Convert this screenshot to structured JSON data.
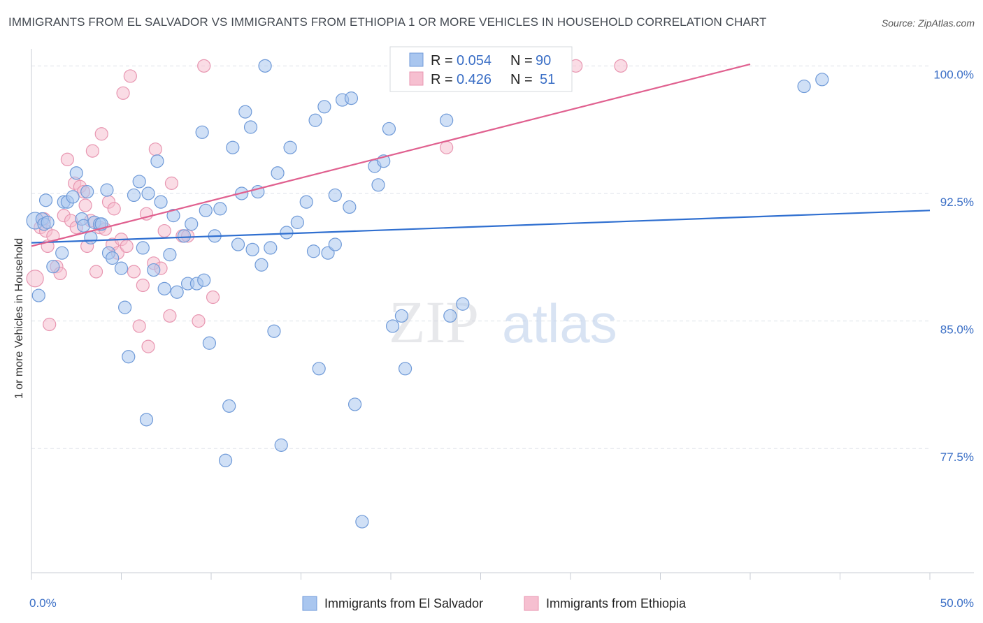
{
  "title": "IMMIGRANTS FROM EL SALVADOR VS IMMIGRANTS FROM ETHIOPIA 1 OR MORE VEHICLES IN HOUSEHOLD CORRELATION CHART",
  "source": "Source: ZipAtlas.com",
  "watermark": {
    "zip": "ZIP",
    "atlas": "atlas"
  },
  "legend": {
    "r_label": "R =",
    "n_label": "N =",
    "series1": {
      "r": "0.054",
      "n": "90"
    },
    "series2": {
      "r": "0.426",
      "n": "51"
    }
  },
  "colors": {
    "series1_fill": "#a9c6ef",
    "series1_stroke": "#6f9ad8",
    "series1_line": "#2f6fd0",
    "series2_fill": "#f6bfd0",
    "series2_stroke": "#e896b1",
    "series2_line": "#e0608f",
    "tick_label": "#3b6fc6",
    "grid": "#dde1e8"
  },
  "chart_data": {
    "type": "scatter",
    "title": "IMMIGRANTS FROM EL SALVADOR VS IMMIGRANTS FROM ETHIOPIA 1 OR MORE VEHICLES IN HOUSEHOLD CORRELATION CHART",
    "xlabel": "",
    "ylabel": "1 or more Vehicles in Household",
    "xlim": [
      0,
      50
    ],
    "ylim": [
      70.2,
      101
    ],
    "x_tick_labels": [
      {
        "value": 0,
        "label": "0.0%"
      },
      {
        "value": 50,
        "label": "50.0%"
      }
    ],
    "y_ticks": [
      {
        "value": 77.5,
        "label": "77.5%"
      },
      {
        "value": 85.0,
        "label": "85.0%"
      },
      {
        "value": 92.5,
        "label": "92.5%"
      },
      {
        "value": 100.0,
        "label": "100.0%"
      }
    ],
    "series": [
      {
        "name": "Immigrants from El Salvador",
        "r": 0.054,
        "n": 90,
        "trendline": {
          "x": [
            0,
            50
          ],
          "y": [
            89.6,
            91.5
          ]
        },
        "points": [
          [
            0.2,
            90.9
          ],
          [
            0.4,
            86.5
          ],
          [
            0.6,
            91.0
          ],
          [
            0.7,
            90.7
          ],
          [
            0.8,
            92.1
          ],
          [
            0.9,
            90.8
          ],
          [
            1.2,
            88.2
          ],
          [
            1.7,
            89.0
          ],
          [
            1.8,
            92.0
          ],
          [
            2.0,
            92.0
          ],
          [
            2.3,
            92.3
          ],
          [
            2.5,
            93.7
          ],
          [
            2.8,
            91.0
          ],
          [
            2.9,
            90.6
          ],
          [
            3.1,
            92.6
          ],
          [
            3.3,
            89.9
          ],
          [
            3.5,
            90.8
          ],
          [
            3.8,
            90.7
          ],
          [
            3.9,
            90.7
          ],
          [
            4.2,
            92.7
          ],
          [
            4.3,
            89.0
          ],
          [
            4.5,
            88.7
          ],
          [
            5.0,
            88.1
          ],
          [
            5.2,
            85.8
          ],
          [
            5.4,
            82.9
          ],
          [
            5.7,
            92.4
          ],
          [
            6.0,
            93.2
          ],
          [
            6.2,
            89.3
          ],
          [
            6.4,
            79.2
          ],
          [
            6.5,
            92.5
          ],
          [
            6.8,
            88.0
          ],
          [
            7.0,
            94.4
          ],
          [
            7.2,
            92.0
          ],
          [
            7.4,
            86.9
          ],
          [
            7.7,
            88.9
          ],
          [
            7.9,
            91.2
          ],
          [
            8.1,
            86.7
          ],
          [
            8.5,
            90.0
          ],
          [
            8.7,
            87.2
          ],
          [
            8.9,
            90.7
          ],
          [
            9.2,
            87.2
          ],
          [
            9.5,
            96.1
          ],
          [
            9.6,
            87.4
          ],
          [
            9.7,
            91.5
          ],
          [
            9.9,
            83.7
          ],
          [
            10.2,
            90.0
          ],
          [
            10.5,
            91.6
          ],
          [
            10.8,
            76.8
          ],
          [
            11.0,
            80.0
          ],
          [
            11.2,
            95.2
          ],
          [
            11.5,
            89.5
          ],
          [
            11.7,
            92.5
          ],
          [
            11.9,
            97.3
          ],
          [
            12.2,
            96.4
          ],
          [
            12.3,
            89.2
          ],
          [
            12.6,
            92.6
          ],
          [
            12.8,
            88.3
          ],
          [
            13.0,
            100.0
          ],
          [
            13.3,
            89.3
          ],
          [
            13.5,
            84.4
          ],
          [
            13.7,
            93.7
          ],
          [
            13.9,
            77.7
          ],
          [
            14.2,
            90.2
          ],
          [
            14.4,
            95.2
          ],
          [
            14.8,
            90.8
          ],
          [
            15.3,
            92.0
          ],
          [
            15.7,
            89.1
          ],
          [
            15.8,
            96.8
          ],
          [
            16.0,
            82.2
          ],
          [
            16.3,
            97.6
          ],
          [
            16.5,
            89.0
          ],
          [
            16.9,
            89.5
          ],
          [
            16.9,
            92.4
          ],
          [
            17.3,
            98.0
          ],
          [
            17.7,
            91.7
          ],
          [
            17.8,
            98.1
          ],
          [
            18.0,
            80.1
          ],
          [
            18.4,
            73.2
          ],
          [
            19.1,
            94.1
          ],
          [
            19.3,
            93.0
          ],
          [
            19.6,
            94.4
          ],
          [
            19.9,
            96.3
          ],
          [
            20.1,
            84.7
          ],
          [
            20.6,
            85.3
          ],
          [
            20.8,
            82.2
          ],
          [
            23.1,
            96.8
          ],
          [
            23.3,
            85.3
          ],
          [
            24.0,
            86.0
          ],
          [
            43.0,
            98.8
          ],
          [
            44.0,
            99.2
          ]
        ]
      },
      {
        "name": "Immigrants from Ethiopia",
        "r": 0.426,
        "n": 51,
        "trendline": {
          "x": [
            0,
            40
          ],
          "y": [
            89.4,
            100.1
          ]
        },
        "points": [
          [
            0.2,
            87.5
          ],
          [
            0.5,
            90.5
          ],
          [
            0.7,
            91.0
          ],
          [
            0.8,
            90.3
          ],
          [
            0.9,
            89.4
          ],
          [
            1.0,
            84.8
          ],
          [
            1.2,
            90.0
          ],
          [
            1.4,
            88.2
          ],
          [
            1.6,
            87.8
          ],
          [
            1.8,
            91.2
          ],
          [
            2.0,
            94.5
          ],
          [
            2.2,
            90.9
          ],
          [
            2.4,
            93.1
          ],
          [
            2.5,
            90.5
          ],
          [
            2.7,
            92.9
          ],
          [
            2.9,
            92.6
          ],
          [
            3.0,
            91.8
          ],
          [
            3.1,
            89.4
          ],
          [
            3.3,
            90.9
          ],
          [
            3.4,
            95.0
          ],
          [
            3.6,
            87.9
          ],
          [
            3.8,
            90.5
          ],
          [
            3.9,
            96.0
          ],
          [
            4.1,
            90.4
          ],
          [
            4.3,
            92.0
          ],
          [
            4.5,
            89.5
          ],
          [
            4.6,
            91.6
          ],
          [
            4.8,
            89.0
          ],
          [
            5.0,
            89.8
          ],
          [
            5.1,
            98.4
          ],
          [
            5.3,
            89.4
          ],
          [
            5.5,
            99.4
          ],
          [
            5.7,
            87.9
          ],
          [
            6.0,
            84.7
          ],
          [
            6.2,
            87.1
          ],
          [
            6.4,
            91.3
          ],
          [
            6.5,
            83.5
          ],
          [
            6.8,
            88.4
          ],
          [
            6.9,
            95.1
          ],
          [
            7.2,
            88.1
          ],
          [
            7.4,
            90.3
          ],
          [
            7.7,
            85.3
          ],
          [
            7.8,
            93.1
          ],
          [
            8.4,
            90.0
          ],
          [
            8.7,
            90.0
          ],
          [
            9.3,
            85.0
          ],
          [
            9.6,
            100.0
          ],
          [
            10.1,
            86.4
          ],
          [
            23.1,
            95.2
          ],
          [
            30.3,
            100.0
          ],
          [
            32.8,
            100.0
          ]
        ]
      }
    ]
  }
}
